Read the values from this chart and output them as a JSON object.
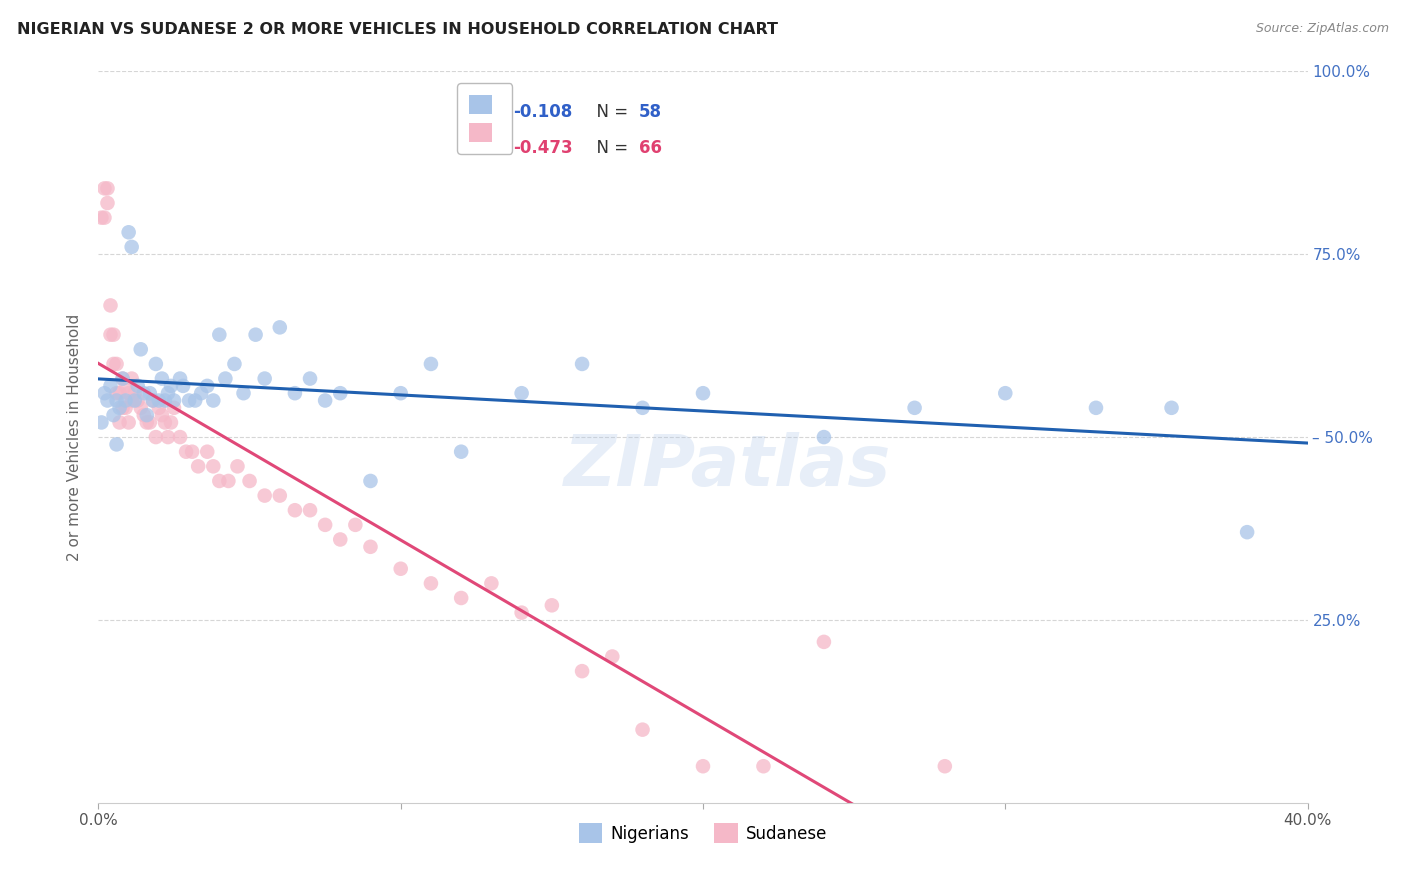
{
  "title": "NIGERIAN VS SUDANESE 2 OR MORE VEHICLES IN HOUSEHOLD CORRELATION CHART",
  "source": "Source: ZipAtlas.com",
  "ylabel": "2 or more Vehicles in Household",
  "watermark": "ZIPatlas",
  "xlim": [
    0.0,
    0.4
  ],
  "ylim": [
    0.0,
    1.0
  ],
  "nigerians_R": -0.108,
  "nigerians_N": 58,
  "sudanese_R": -0.473,
  "sudanese_N": 66,
  "blue_color": "#a8c4e8",
  "pink_color": "#f5b8c8",
  "blue_line_color": "#2060b0",
  "pink_line_color": "#e04878",
  "background_color": "#ffffff",
  "grid_color": "#cccccc",
  "nigerians_x": [
    0.001,
    0.002,
    0.003,
    0.004,
    0.005,
    0.006,
    0.006,
    0.007,
    0.008,
    0.009,
    0.01,
    0.011,
    0.012,
    0.013,
    0.014,
    0.015,
    0.016,
    0.017,
    0.018,
    0.019,
    0.02,
    0.021,
    0.022,
    0.023,
    0.024,
    0.025,
    0.027,
    0.028,
    0.03,
    0.032,
    0.034,
    0.036,
    0.038,
    0.04,
    0.042,
    0.045,
    0.048,
    0.052,
    0.055,
    0.06,
    0.065,
    0.07,
    0.075,
    0.08,
    0.09,
    0.1,
    0.11,
    0.12,
    0.14,
    0.16,
    0.18,
    0.2,
    0.24,
    0.27,
    0.3,
    0.33,
    0.355,
    0.38
  ],
  "nigerians_y": [
    0.52,
    0.56,
    0.55,
    0.57,
    0.53,
    0.55,
    0.49,
    0.54,
    0.58,
    0.55,
    0.78,
    0.76,
    0.55,
    0.57,
    0.62,
    0.56,
    0.53,
    0.56,
    0.55,
    0.6,
    0.55,
    0.58,
    0.55,
    0.56,
    0.57,
    0.55,
    0.58,
    0.57,
    0.55,
    0.55,
    0.56,
    0.57,
    0.55,
    0.64,
    0.58,
    0.6,
    0.56,
    0.64,
    0.58,
    0.65,
    0.56,
    0.58,
    0.55,
    0.56,
    0.44,
    0.56,
    0.6,
    0.48,
    0.56,
    0.6,
    0.54,
    0.56,
    0.5,
    0.54,
    0.56,
    0.54,
    0.54,
    0.37
  ],
  "sudanese_x": [
    0.001,
    0.002,
    0.002,
    0.003,
    0.003,
    0.004,
    0.004,
    0.005,
    0.005,
    0.006,
    0.006,
    0.007,
    0.007,
    0.008,
    0.008,
    0.009,
    0.009,
    0.01,
    0.01,
    0.011,
    0.011,
    0.012,
    0.013,
    0.014,
    0.015,
    0.016,
    0.017,
    0.018,
    0.019,
    0.02,
    0.021,
    0.022,
    0.023,
    0.024,
    0.025,
    0.027,
    0.029,
    0.031,
    0.033,
    0.036,
    0.038,
    0.04,
    0.043,
    0.046,
    0.05,
    0.055,
    0.06,
    0.065,
    0.07,
    0.075,
    0.08,
    0.085,
    0.09,
    0.1,
    0.11,
    0.12,
    0.13,
    0.14,
    0.15,
    0.16,
    0.17,
    0.18,
    0.2,
    0.22,
    0.24,
    0.28
  ],
  "sudanese_y": [
    0.8,
    0.84,
    0.8,
    0.82,
    0.84,
    0.64,
    0.68,
    0.6,
    0.64,
    0.56,
    0.6,
    0.52,
    0.56,
    0.54,
    0.58,
    0.54,
    0.57,
    0.52,
    0.56,
    0.55,
    0.58,
    0.56,
    0.55,
    0.54,
    0.53,
    0.52,
    0.52,
    0.55,
    0.5,
    0.54,
    0.53,
    0.52,
    0.5,
    0.52,
    0.54,
    0.5,
    0.48,
    0.48,
    0.46,
    0.48,
    0.46,
    0.44,
    0.44,
    0.46,
    0.44,
    0.42,
    0.42,
    0.4,
    0.4,
    0.38,
    0.36,
    0.38,
    0.35,
    0.32,
    0.3,
    0.28,
    0.3,
    0.26,
    0.27,
    0.18,
    0.2,
    0.1,
    0.05,
    0.05,
    0.22,
    0.05
  ],
  "legend_R_blue": "R = -0.108",
  "legend_N_blue": "N = 58",
  "legend_R_pink": "R = -0.473",
  "legend_N_pink": "N = 66",
  "legend_R_color_blue": "#3060c8",
  "legend_R_color_pink": "#e04070",
  "legend_N_color": "#333333"
}
